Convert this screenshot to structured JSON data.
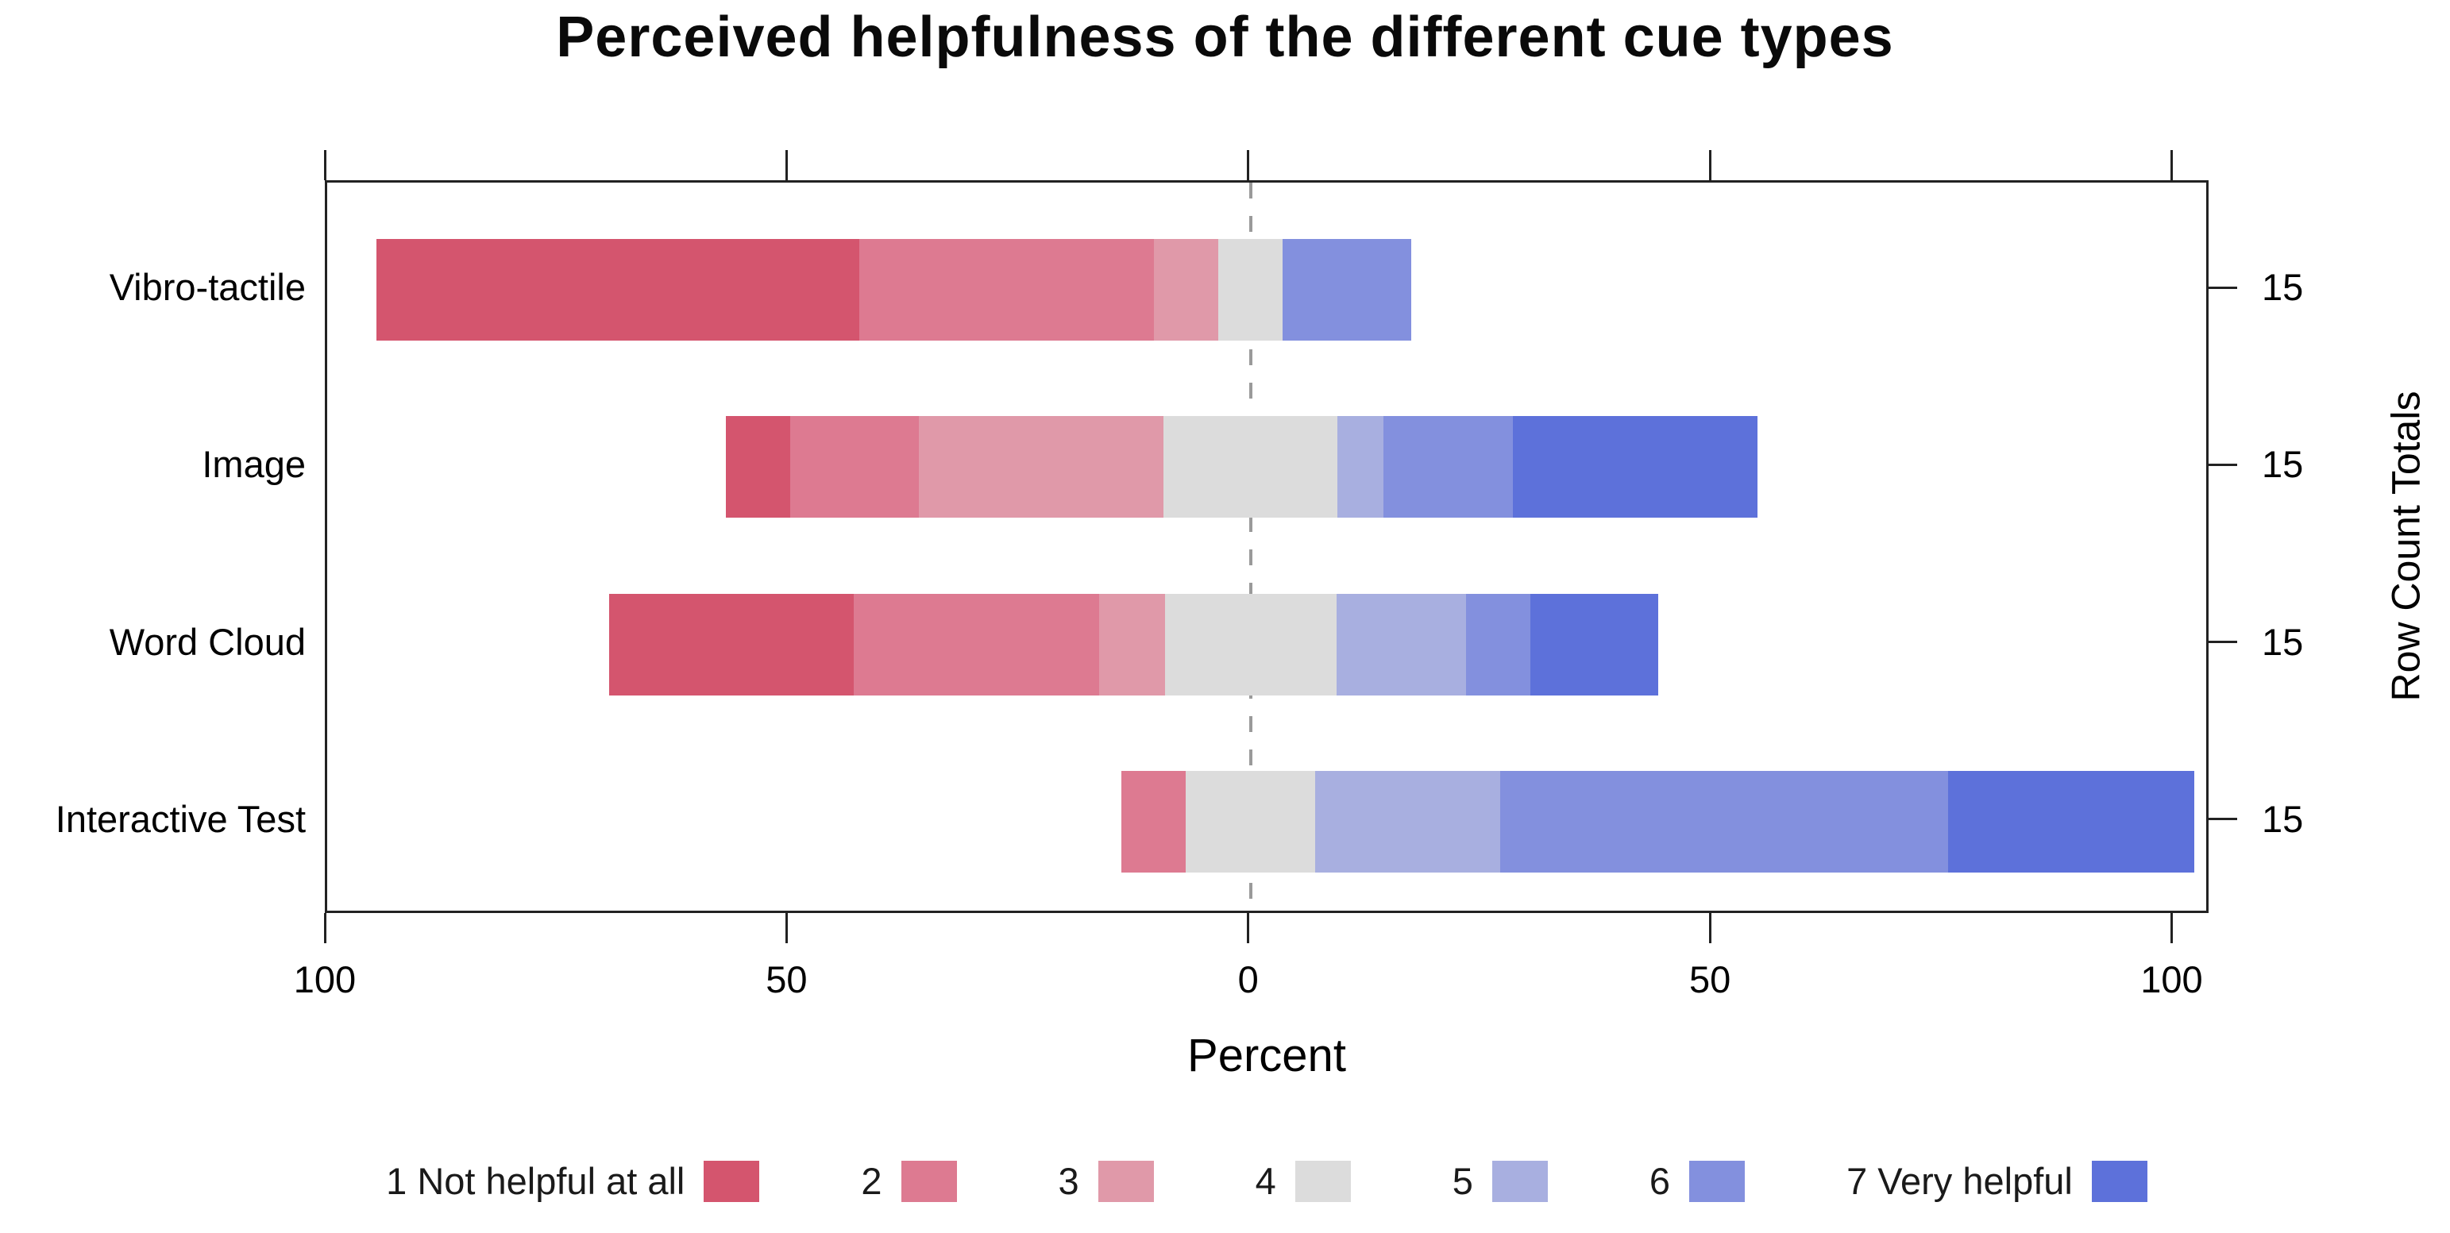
{
  "chart_data": {
    "type": "bar",
    "variant": "diverging_stacked_likert",
    "title": "Perceived helpfulness of the different cue types",
    "xlabel": "Percent",
    "right_axis_label": "Row Count Totals",
    "legend": [
      "1 Not helpful at all",
      "2",
      "3",
      "4",
      "5",
      "6",
      "7 Very helpful"
    ],
    "colors": [
      "#d4556e",
      "#dd7a91",
      "#e099a9",
      "#dcdcdc",
      "#a8afe0",
      "#8390de",
      "#5d71da"
    ],
    "categories": [
      "Vibro-tactile",
      "Image",
      "Word Cloud",
      "Interactive Test"
    ],
    "series": [
      {
        "name": "Vibro-tactile",
        "values_pct": [
          52.3,
          31.9,
          7.0,
          7.0,
          0.0,
          13.9,
          0.0
        ],
        "row_count_total": "15"
      },
      {
        "name": "Image",
        "values_pct": [
          6.9,
          14.0,
          26.5,
          18.8,
          5.0,
          14.0,
          26.5
        ],
        "row_count_total": "15"
      },
      {
        "name": "Word Cloud",
        "values_pct": [
          26.5,
          26.6,
          7.1,
          18.6,
          14.0,
          7.0,
          13.8
        ],
        "row_count_total": "15"
      },
      {
        "name": "Interactive Test",
        "values_pct": [
          0.0,
          7.0,
          0.0,
          14.0,
          20.0,
          48.5,
          26.7
        ],
        "row_count_total": "15"
      }
    ],
    "neutral_category_index": 3,
    "x_ticks": {
      "values": [
        -100,
        -50,
        0,
        50,
        100
      ],
      "labels": [
        "100",
        "50",
        "0",
        "50",
        "100"
      ]
    },
    "x_domain": [
      -100,
      104
    ],
    "zero_line_style": "dashed",
    "legend_position": "bottom",
    "grid": false
  }
}
